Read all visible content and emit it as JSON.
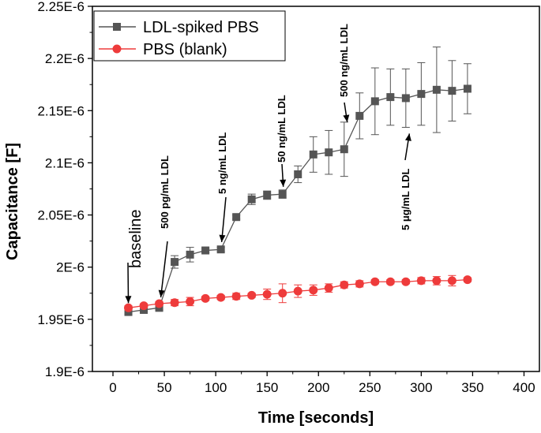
{
  "chart_data": {
    "type": "line",
    "title": "",
    "xlabel": "Time [seconds]",
    "ylabel": "Capacitance [F]",
    "xlim": [
      -20,
      415
    ],
    "ylim": [
      1.9e-06,
      2.25e-06
    ],
    "x_ticks": [
      0,
      50,
      100,
      150,
      200,
      250,
      300,
      350,
      400
    ],
    "x_tick_labels": [
      "0",
      "50",
      "100",
      "150",
      "200",
      "250",
      "300",
      "350",
      "400"
    ],
    "y_ticks": [
      1.9e-06,
      1.95e-06,
      2e-06,
      2.05e-06,
      2.1e-06,
      2.15e-06,
      2.2e-06,
      2.25e-06
    ],
    "y_tick_labels": [
      "1.9E-6",
      "1.95E-6",
      "2E-6",
      "2.05E-6",
      "2.1E-6",
      "2.15E-6",
      "2.2E-6",
      "2.25E-6"
    ],
    "legend_position": "top-left",
    "series": [
      {
        "name": "LDL-spiked PBS",
        "color": "#555555",
        "marker": "square",
        "x": [
          15,
          30,
          45,
          60,
          75,
          90,
          105,
          120,
          135,
          150,
          165,
          180,
          195,
          210,
          225,
          240,
          255,
          270,
          285,
          300,
          315,
          330,
          345
        ],
        "y": [
          1.957e-06,
          1.959e-06,
          1.961e-06,
          2.005e-06,
          2.012e-06,
          2.016e-06,
          2.017e-06,
          2.048e-06,
          2.065e-06,
          2.069e-06,
          2.07e-06,
          2.089e-06,
          2.108e-06,
          2.11e-06,
          2.113e-06,
          2.145e-06,
          2.159e-06,
          2.163e-06,
          2.162e-06,
          2.166e-06,
          2.17e-06,
          2.169e-06,
          2.171e-06
        ],
        "error": [
          2e-09,
          2e-09,
          2e-09,
          6e-09,
          7e-09,
          2e-09,
          2e-09,
          2e-09,
          5e-09,
          4e-09,
          4e-09,
          8e-09,
          1.7e-08,
          2.1e-08,
          2.6e-08,
          2.2e-08,
          3.2e-08,
          2.7e-08,
          2.8e-08,
          3e-08,
          4.1e-08,
          2.9e-08,
          2.4e-08
        ]
      },
      {
        "name": "PBS (blank)",
        "color": "#ee3b3b",
        "marker": "circle",
        "x": [
          15,
          30,
          45,
          60,
          75,
          90,
          105,
          120,
          135,
          150,
          165,
          180,
          195,
          210,
          225,
          240,
          255,
          270,
          285,
          300,
          315,
          330,
          345
        ],
        "y": [
          1.961e-06,
          1.963e-06,
          1.965e-06,
          1.966e-06,
          1.967e-06,
          1.97e-06,
          1.971e-06,
          1.972e-06,
          1.973e-06,
          1.974e-06,
          1.975e-06,
          1.977e-06,
          1.978e-06,
          1.98e-06,
          1.983e-06,
          1.984e-06,
          1.986e-06,
          1.986e-06,
          1.986e-06,
          1.987e-06,
          1.987e-06,
          1.987e-06,
          1.988e-06
        ],
        "error": [
          2e-09,
          2e-09,
          2e-09,
          3e-09,
          4e-09,
          2e-09,
          2e-09,
          3e-09,
          2e-09,
          5e-09,
          9e-09,
          6e-09,
          5e-09,
          4e-09,
          3e-09,
          3e-09,
          2e-09,
          2e-09,
          2e-09,
          3e-09,
          4e-09,
          5e-09,
          2e-09
        ]
      }
    ],
    "annotations": [
      {
        "text": "baseline",
        "x": 15,
        "y": 1.961e-06,
        "style": "large"
      },
      {
        "text": "500 pg/mL LDL",
        "x": 45,
        "y": 1.965e-06
      },
      {
        "text": "5 ng/mL LDL",
        "x": 105,
        "y": 2.018e-06
      },
      {
        "text": "50 ng/mL LDL",
        "x": 165,
        "y": 2.071e-06
      },
      {
        "text": "500 ng/mL LDL",
        "x": 228,
        "y": 2.139e-06
      },
      {
        "text": "5 μg/mL LDL",
        "x": 290,
        "y": 2.128e-06
      }
    ]
  }
}
